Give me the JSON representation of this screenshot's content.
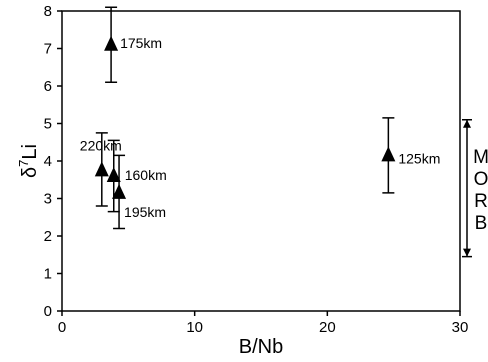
{
  "chart_data": {
    "type": "scatter",
    "title": "",
    "xlabel": "B/Nb",
    "ylabel": {
      "base": "δ",
      "sup": "7",
      "rest": "Li"
    },
    "xlim": [
      0,
      30
    ],
    "ylim": [
      0,
      8
    ],
    "xticks": [
      0,
      10,
      20,
      30
    ],
    "yticks": [
      0,
      1,
      2,
      3,
      4,
      5,
      6,
      7,
      8
    ],
    "xtick_labels": [
      "0",
      "10",
      "20",
      "30"
    ],
    "ytick_labels": [
      "0",
      "1",
      "2",
      "3",
      "4",
      "5",
      "6",
      "7",
      "8"
    ],
    "grid": false,
    "marker": "filled-triangle",
    "points": [
      {
        "label": "175km",
        "x": 3.7,
        "y": 7.1,
        "yerr_low": 6.1,
        "yerr_high": 8.1
      },
      {
        "label": "220km",
        "x": 3.0,
        "y": 3.75,
        "yerr_low": 2.8,
        "yerr_high": 4.75
      },
      {
        "label": "160km",
        "x": 3.9,
        "y": 3.6,
        "yerr_low": 2.65,
        "yerr_high": 4.55
      },
      {
        "label": "195km",
        "x": 4.3,
        "y": 3.15,
        "yerr_low": 2.2,
        "yerr_high": 4.15
      },
      {
        "label": "125km",
        "x": 24.6,
        "y": 4.15,
        "yerr_low": 3.15,
        "yerr_high": 5.15
      }
    ],
    "range_annotation": {
      "letters": [
        "M",
        "O",
        "R",
        "B"
      ],
      "low": 1.45,
      "high": 5.1
    }
  }
}
